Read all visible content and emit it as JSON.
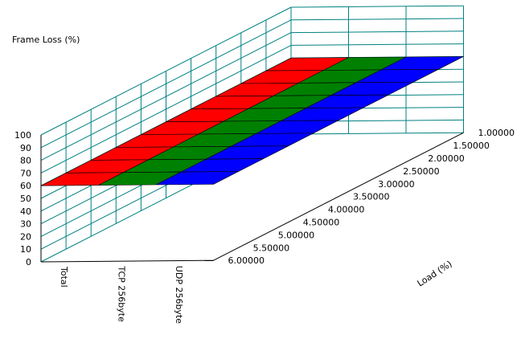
{
  "chart_data": {
    "type": "3d-surface",
    "zlabel": "Frame Loss (%)",
    "xlabel": "Load (%)",
    "z_ticks": [
      "0",
      "10",
      "20",
      "30",
      "40",
      "50",
      "60",
      "70",
      "80",
      "90",
      "100"
    ],
    "zlim": [
      0,
      100
    ],
    "load_ticks": [
      "1.00000",
      "1.50000",
      "2.00000",
      "2.50000",
      "3.00000",
      "3.50000",
      "4.00000",
      "4.50000",
      "5.00000",
      "5.50000",
      "6.00000"
    ],
    "series": [
      {
        "name": "Total",
        "color": "#ff0000",
        "values": [
          60,
          60,
          60,
          60,
          60,
          60,
          60,
          60,
          60,
          60,
          60
        ]
      },
      {
        "name": "TCP 256byte",
        "color": "#008000",
        "values": [
          60,
          60,
          60,
          60,
          60,
          60,
          60,
          60,
          60,
          60,
          60
        ]
      },
      {
        "name": "UDP 256byte",
        "color": "#0000ff",
        "values": [
          60,
          60,
          60,
          60,
          60,
          60,
          60,
          60,
          60,
          60,
          60
        ]
      }
    ]
  }
}
